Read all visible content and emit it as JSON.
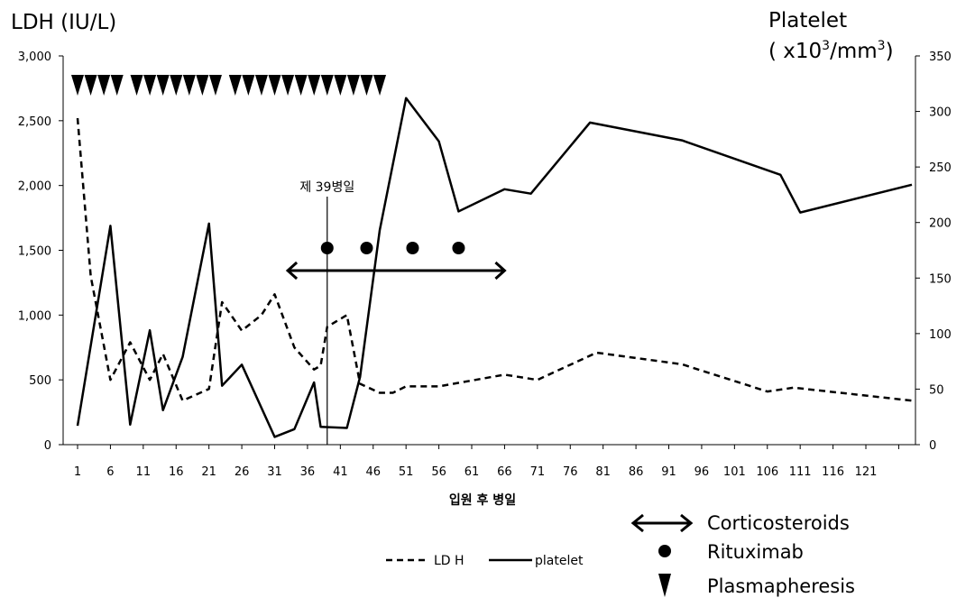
{
  "chart_data": {
    "type": "line",
    "y_left_title": "LDH  (IU/L)",
    "y_right_title_line1": "Platelet",
    "y_right_title_line2_prefix": "( x10",
    "y_right_title_sup1": "3",
    "y_right_title_mid": "/mm",
    "y_right_title_sup2": "3",
    "y_right_title_suffix": ")",
    "xlabel": "입원 후 병일",
    "xlim": [
      1,
      128
    ],
    "ylim_left": [
      0,
      3000
    ],
    "ylim_right": [
      0,
      350
    ],
    "left_ticks": [
      0,
      500,
      1000,
      1500,
      2000,
      2500,
      3000
    ],
    "left_tick_labels": [
      "0",
      "500",
      "1,000",
      "1,500",
      "2,000",
      "2,500",
      "3,000"
    ],
    "right_ticks": [
      0,
      50,
      100,
      150,
      200,
      250,
      300,
      350
    ],
    "right_tick_labels": [
      "0",
      "50",
      "100",
      "150",
      "200",
      "250",
      "300",
      "350"
    ],
    "x_ticks": [
      1,
      6,
      11,
      16,
      21,
      26,
      31,
      36,
      41,
      46,
      51,
      56,
      61,
      66,
      71,
      76,
      81,
      86,
      91,
      96,
      101,
      106,
      111,
      116,
      121
    ],
    "x_tick_labels": [
      "1",
      "6",
      "11",
      "16",
      "21",
      "26",
      "31",
      "36",
      "41",
      "46",
      "51",
      "56",
      "61",
      "66",
      "71",
      "76",
      "81",
      "86",
      "91",
      "96",
      "101",
      "106",
      "111",
      "116",
      "121"
    ],
    "series": [
      {
        "name": "LD H",
        "axis": "left",
        "style": "dashed",
        "x": [
          1,
          3,
          6,
          9,
          12,
          14,
          17,
          21,
          23,
          26,
          29,
          31,
          34,
          37,
          38,
          39,
          42,
          44,
          47,
          49,
          51,
          56,
          66,
          71,
          80,
          93,
          106,
          110,
          128
        ],
        "y": [
          2520,
          1300,
          500,
          790,
          500,
          700,
          340,
          430,
          1100,
          880,
          1000,
          1160,
          750,
          580,
          610,
          910,
          1000,
          470,
          400,
          400,
          450,
          450,
          540,
          500,
          710,
          620,
          410,
          440,
          340
        ]
      },
      {
        "name": "platelet",
        "axis": "right",
        "style": "solid",
        "x": [
          1,
          6,
          9,
          12,
          14,
          17,
          21,
          23,
          26,
          31,
          34,
          37,
          38,
          42,
          44,
          47,
          51,
          56,
          59,
          66,
          70,
          79,
          93,
          108,
          111,
          128
        ],
        "y": [
          17,
          197,
          18,
          103,
          31,
          79,
          199,
          53,
          72,
          7,
          14,
          56,
          16,
          15,
          61,
          193,
          312,
          273,
          210,
          230,
          226,
          290,
          274,
          243,
          209,
          234
        ]
      }
    ],
    "annotation": {
      "label": "제 39병일",
      "x": 39
    },
    "plasmapheresis_days": [
      1,
      3,
      5,
      7,
      10,
      12,
      14,
      16,
      18,
      20,
      22,
      25,
      27,
      29,
      31,
      33,
      35,
      37,
      39,
      41,
      43,
      45,
      47
    ],
    "rituximab_days": [
      39,
      45,
      52,
      59
    ],
    "corticosteroids_range": [
      33,
      66
    ],
    "legend": {
      "line_entries": [
        "LD H",
        "platelet"
      ],
      "symbol_entries": [
        "Corticosteroids",
        "Rituximab",
        "Plasmapheresis"
      ]
    },
    "grid": false
  },
  "colors": {
    "line": "#000000",
    "background": "#ffffff"
  }
}
